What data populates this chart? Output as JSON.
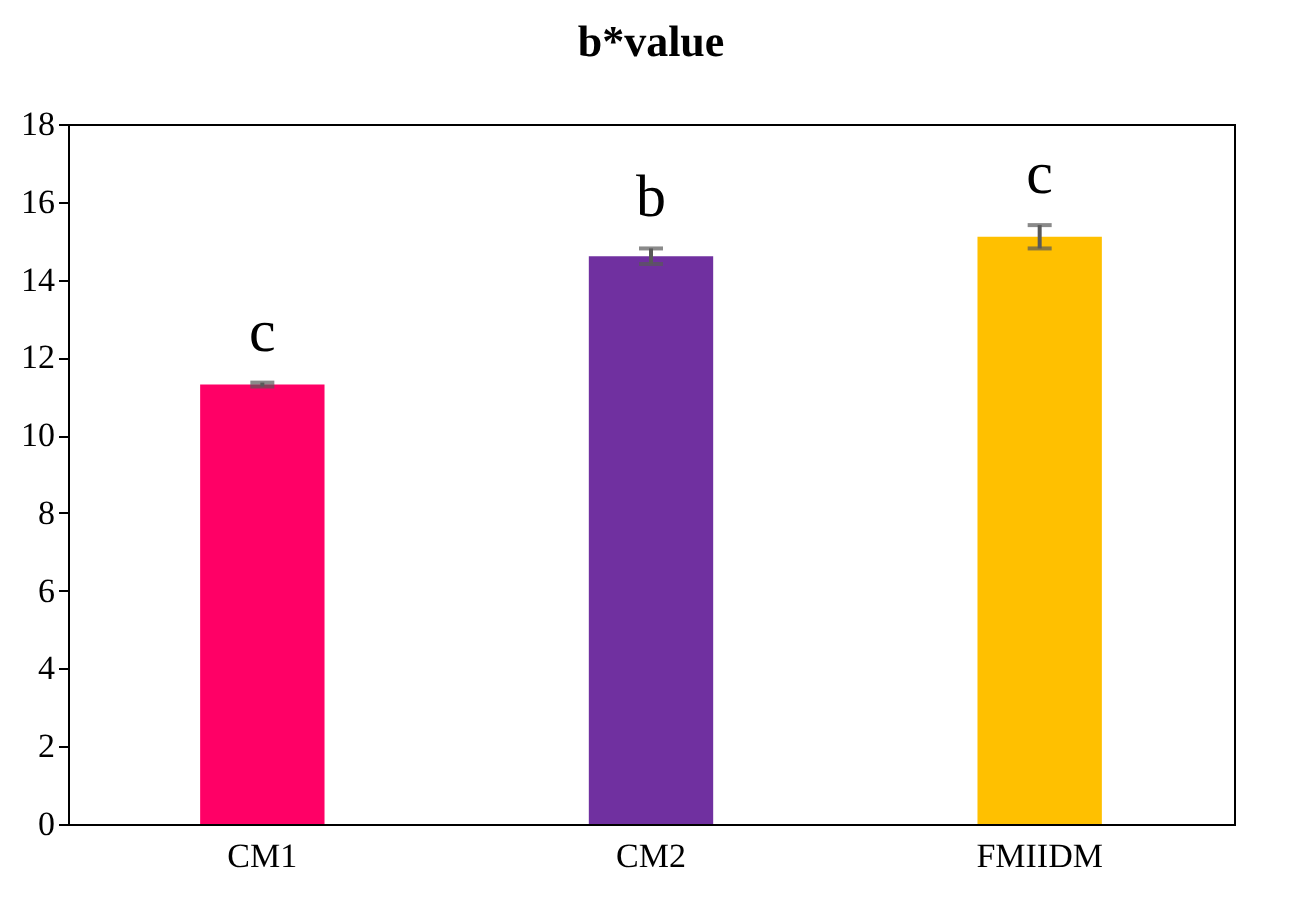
{
  "chart_data": {
    "type": "bar",
    "title": "b*value",
    "categories": [
      "CM1",
      "CM2",
      "FMIIDM"
    ],
    "values": [
      11.3,
      14.6,
      15.1
    ],
    "colors": [
      "#ff0066",
      "#7030a0",
      "#ffc000"
    ],
    "errors": [
      0.05,
      0.2,
      0.3
    ],
    "ylim": [
      0,
      18
    ],
    "yticks": [
      0,
      2,
      4,
      6,
      8,
      10,
      12,
      14,
      16,
      18
    ],
    "grid": false,
    "annotations": [
      "c",
      "b",
      "c"
    ]
  }
}
